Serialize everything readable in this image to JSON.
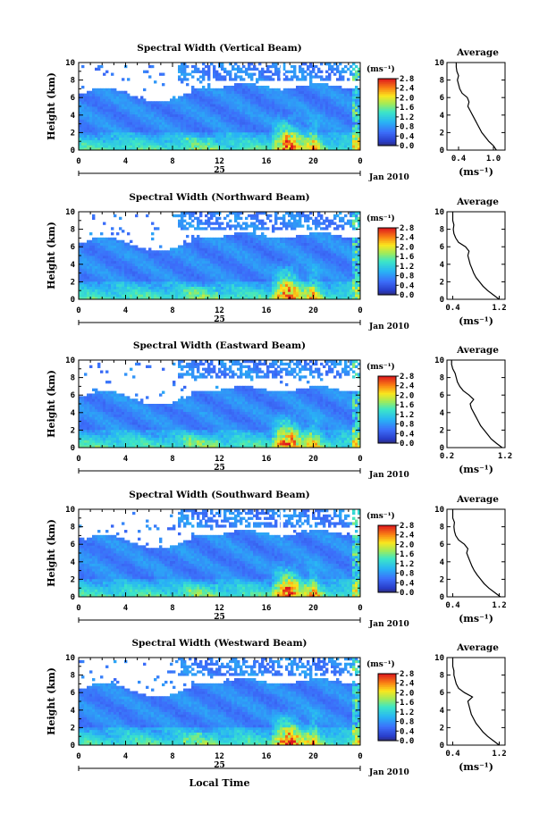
{
  "chart_data": {
    "type": "heatmap",
    "panels": [
      {
        "title": "Spectral Width (Vertical Beam)",
        "profile_xticks": [
          "0.4",
          "1.0"
        ],
        "profile_xlim": [
          0.2,
          1.2
        ],
        "profile": [
          [
            0.0,
            1.05
          ],
          [
            0.5,
            1.0
          ],
          [
            1.0,
            0.92
          ],
          [
            1.5,
            0.86
          ],
          [
            2.0,
            0.8
          ],
          [
            2.5,
            0.76
          ],
          [
            3.0,
            0.72
          ],
          [
            3.5,
            0.68
          ],
          [
            4.0,
            0.64
          ],
          [
            4.5,
            0.6
          ],
          [
            5.0,
            0.56
          ],
          [
            5.5,
            0.58
          ],
          [
            6.0,
            0.55
          ],
          [
            6.5,
            0.46
          ],
          [
            7.0,
            0.42
          ],
          [
            7.5,
            0.4
          ],
          [
            8.0,
            0.38
          ],
          [
            8.5,
            0.4
          ],
          [
            9.0,
            0.37
          ],
          [
            9.5,
            0.36
          ],
          [
            10.0,
            0.36
          ]
        ]
      },
      {
        "title": "Spectral Width (Northward Beam)",
        "profile_xticks": [
          "0.4",
          "1.2"
        ],
        "profile_xlim": [
          0.3,
          1.3
        ],
        "profile": [
          [
            0.0,
            1.2
          ],
          [
            0.5,
            1.1
          ],
          [
            1.0,
            1.0
          ],
          [
            1.5,
            0.92
          ],
          [
            2.0,
            0.86
          ],
          [
            2.5,
            0.8
          ],
          [
            3.0,
            0.76
          ],
          [
            3.5,
            0.73
          ],
          [
            4.0,
            0.7
          ],
          [
            4.5,
            0.68
          ],
          [
            5.0,
            0.66
          ],
          [
            5.5,
            0.68
          ],
          [
            6.0,
            0.62
          ],
          [
            6.5,
            0.5
          ],
          [
            7.0,
            0.45
          ],
          [
            7.5,
            0.42
          ],
          [
            8.0,
            0.41
          ],
          [
            8.5,
            0.42
          ],
          [
            9.0,
            0.4
          ],
          [
            9.5,
            0.4
          ],
          [
            10.0,
            0.4
          ]
        ]
      },
      {
        "title": "Spectral Width (Eastward Beam)",
        "profile_xticks": [
          "0.2",
          "1.2"
        ],
        "profile_xlim": [
          0.2,
          1.2
        ],
        "profile": [
          [
            0.0,
            1.15
          ],
          [
            0.5,
            1.05
          ],
          [
            1.0,
            0.96
          ],
          [
            1.5,
            0.9
          ],
          [
            2.0,
            0.84
          ],
          [
            2.5,
            0.78
          ],
          [
            3.0,
            0.74
          ],
          [
            3.5,
            0.7
          ],
          [
            4.0,
            0.66
          ],
          [
            4.5,
            0.62
          ],
          [
            5.0,
            0.6
          ],
          [
            5.5,
            0.66
          ],
          [
            6.0,
            0.58
          ],
          [
            6.5,
            0.48
          ],
          [
            7.0,
            0.42
          ],
          [
            7.5,
            0.38
          ],
          [
            8.0,
            0.36
          ],
          [
            8.5,
            0.34
          ],
          [
            9.0,
            0.3
          ],
          [
            9.5,
            0.28
          ],
          [
            10.0,
            0.28
          ]
        ]
      },
      {
        "title": "Spectral Width (Southward Beam)",
        "profile_xticks": [
          "0.4",
          "1.2"
        ],
        "profile_xlim": [
          0.3,
          1.3
        ],
        "profile": [
          [
            0.0,
            1.22
          ],
          [
            0.5,
            1.12
          ],
          [
            1.0,
            1.02
          ],
          [
            1.5,
            0.94
          ],
          [
            2.0,
            0.88
          ],
          [
            2.5,
            0.82
          ],
          [
            3.0,
            0.77
          ],
          [
            3.5,
            0.73
          ],
          [
            4.0,
            0.7
          ],
          [
            4.5,
            0.67
          ],
          [
            5.0,
            0.64
          ],
          [
            5.5,
            0.66
          ],
          [
            6.0,
            0.6
          ],
          [
            6.5,
            0.5
          ],
          [
            7.0,
            0.45
          ],
          [
            7.5,
            0.43
          ],
          [
            8.0,
            0.42
          ],
          [
            8.5,
            0.43
          ],
          [
            9.0,
            0.4
          ],
          [
            9.5,
            0.4
          ],
          [
            10.0,
            0.4
          ]
        ]
      },
      {
        "title": "Spectral Width (Westward Beam)",
        "profile_xticks": [
          "0.4",
          "1.2"
        ],
        "profile_xlim": [
          0.3,
          1.3
        ],
        "profile": [
          [
            0.0,
            1.2
          ],
          [
            0.5,
            1.1
          ],
          [
            1.0,
            1.0
          ],
          [
            1.5,
            0.92
          ],
          [
            2.0,
            0.86
          ],
          [
            2.5,
            0.8
          ],
          [
            3.0,
            0.76
          ],
          [
            3.5,
            0.72
          ],
          [
            4.0,
            0.7
          ],
          [
            4.5,
            0.68
          ],
          [
            5.0,
            0.66
          ],
          [
            5.5,
            0.74
          ],
          [
            6.0,
            0.6
          ],
          [
            6.5,
            0.5
          ],
          [
            7.0,
            0.46
          ],
          [
            7.5,
            0.44
          ],
          [
            8.0,
            0.42
          ],
          [
            8.5,
            0.42
          ],
          [
            9.0,
            0.4
          ],
          [
            9.5,
            0.4
          ],
          [
            10.0,
            0.4
          ]
        ]
      }
    ],
    "ylabel": "Height (km)",
    "ylim": [
      0,
      10
    ],
    "yticks": [
      "0",
      "2",
      "4",
      "6",
      "8",
      "10"
    ],
    "xlim": [
      0,
      24
    ],
    "xticks": [
      "0",
      "4",
      "8",
      "12",
      "16",
      "20",
      "0"
    ],
    "day_label": "25",
    "month_label": "Jan 2010",
    "xlabel": "Local Time",
    "colorbar_unit": "(ms⁻¹)",
    "colorbar_ticks": [
      "2.8",
      "2.4",
      "2.0",
      "1.6",
      "1.2",
      "0.8",
      "0.4",
      "0.0"
    ],
    "colorbar_range": [
      0.0,
      2.8
    ],
    "profile_title": "Average",
    "profile_xlabel": "(ms⁻¹)"
  }
}
